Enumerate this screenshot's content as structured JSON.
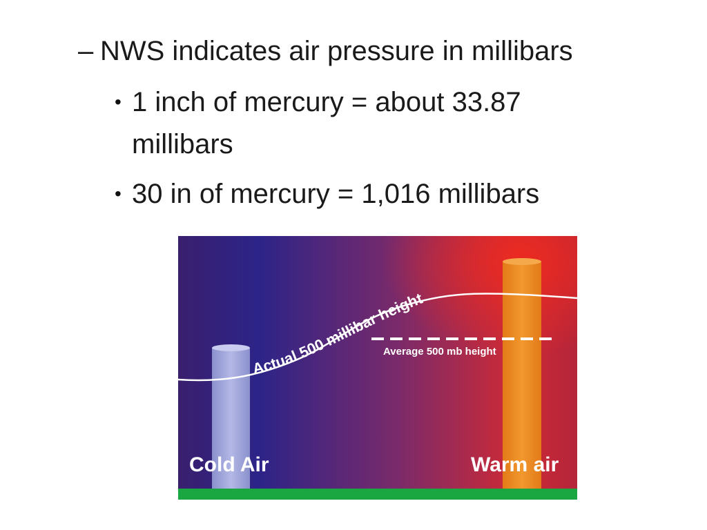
{
  "slide": {
    "dash_marker": "–",
    "heading": "NWS indicates air pressure in millibars",
    "bullet_marker": "•",
    "bullets": [
      {
        "line1": "1 inch of mercury = about 33.87",
        "line2": "millibars"
      },
      {
        "line1": "30 in of mercury = 1,016 millibars"
      }
    ]
  },
  "figure": {
    "actual_label": "Actual 500 millibar height",
    "average_label": "Average 500 mb height",
    "cold_label": "Cold Air",
    "warm_label": "Warm air",
    "colors": {
      "cold_side": "#2e1f7a",
      "warm_side": "#d62020",
      "cold_column": "#9aa0d8",
      "warm_column": "#ee8a22",
      "ground": "#1aa640",
      "line": "#ffffff"
    }
  }
}
